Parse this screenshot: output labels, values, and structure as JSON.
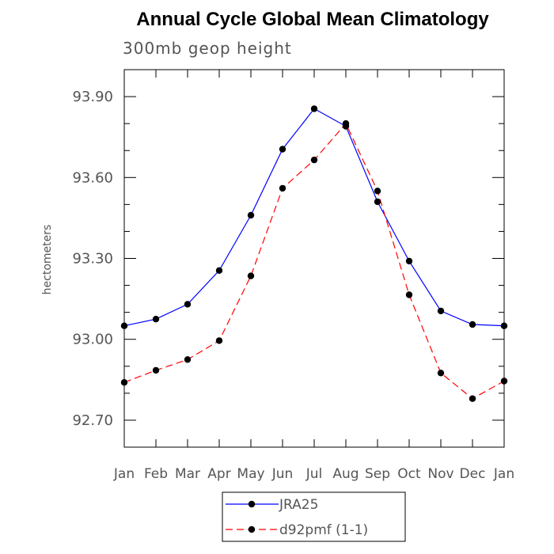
{
  "chart_data": {
    "type": "line",
    "title": "Annual Cycle Global Mean Climatology",
    "subtitle": "300mb geop height",
    "ylabel": "hectometers",
    "xlabel": "",
    "categories": [
      "Jan",
      "Feb",
      "Mar",
      "Apr",
      "May",
      "Jun",
      "Jul",
      "Aug",
      "Sep",
      "Oct",
      "Nov",
      "Dec",
      "Jan"
    ],
    "ylim": [
      92.6,
      94.0
    ],
    "yticks": [
      "93.90",
      "93.60",
      "93.30",
      "93.00",
      "92.70"
    ],
    "ytick_values": [
      93.9,
      93.6,
      93.3,
      93.0,
      92.7
    ],
    "series": [
      {
        "name": "JRA25",
        "color": "#0000ff",
        "dash": "solid",
        "values": [
          93.05,
          93.075,
          93.13,
          93.255,
          93.46,
          93.705,
          93.855,
          93.79,
          93.51,
          93.29,
          93.105,
          93.055,
          93.05
        ]
      },
      {
        "name": "d92pmf (1-1)",
        "color": "#ff0000",
        "dash": "dashed",
        "values": [
          92.84,
          92.885,
          92.925,
          92.995,
          93.235,
          93.56,
          93.665,
          93.8,
          93.55,
          93.165,
          92.875,
          92.78,
          92.845
        ]
      }
    ],
    "grid": false,
    "legend_position": "bottom-center"
  }
}
